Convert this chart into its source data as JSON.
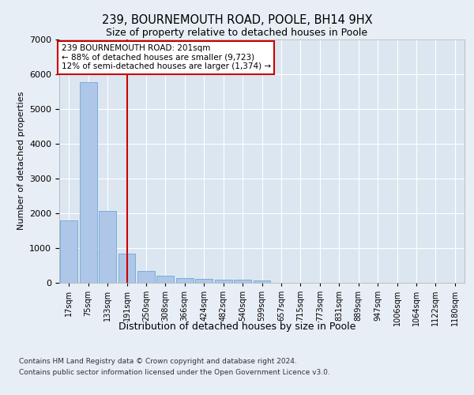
{
  "title_line1": "239, BOURNEMOUTH ROAD, POOLE, BH14 9HX",
  "title_line2": "Size of property relative to detached houses in Poole",
  "xlabel": "Distribution of detached houses by size in Poole",
  "ylabel": "Number of detached properties",
  "categories": [
    "17sqm",
    "75sqm",
    "133sqm",
    "191sqm",
    "250sqm",
    "308sqm",
    "366sqm",
    "424sqm",
    "482sqm",
    "540sqm",
    "599sqm",
    "657sqm",
    "715sqm",
    "773sqm",
    "831sqm",
    "889sqm",
    "947sqm",
    "1006sqm",
    "1064sqm",
    "1122sqm",
    "1180sqm"
  ],
  "values": [
    1780,
    5780,
    2060,
    820,
    340,
    200,
    130,
    110,
    90,
    80,
    60,
    0,
    0,
    0,
    0,
    0,
    0,
    0,
    0,
    0,
    0
  ],
  "bar_color": "#aec6e8",
  "bar_edge_color": "#5a9fd4",
  "vline_x": 3,
  "vline_color": "#cc0000",
  "annotation_text": "239 BOURNEMOUTH ROAD: 201sqm\n← 88% of detached houses are smaller (9,723)\n12% of semi-detached houses are larger (1,374) →",
  "annotation_box_color": "#ffffff",
  "annotation_box_edge": "#cc0000",
  "ylim": [
    0,
    7000
  ],
  "yticks": [
    0,
    1000,
    2000,
    3000,
    4000,
    5000,
    6000,
    7000
  ],
  "footnote1": "Contains HM Land Registry data © Crown copyright and database right 2024.",
  "footnote2": "Contains public sector information licensed under the Open Government Licence v3.0.",
  "background_color": "#e8eef5",
  "plot_bg_color": "#dce6f0"
}
